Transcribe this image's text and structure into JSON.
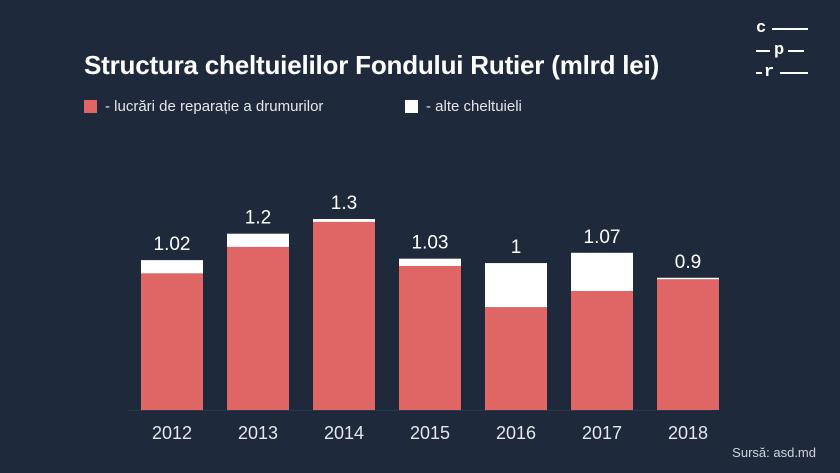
{
  "title": "Structura cheltuielilor Fondului Rutier (mlrd lei)",
  "legend": [
    {
      "label": "- lucrări de reparație a drumurilor",
      "color": "#e06666"
    },
    {
      "label": "- alte cheltuieli",
      "color": "#ffffff"
    }
  ],
  "logo": {
    "c": "c",
    "p": "p",
    "r": "r"
  },
  "source": "Sursă: asd.md",
  "colors": {
    "background": "#1e293b",
    "repairs": "#e06666",
    "other": "#ffffff",
    "axis": "#2d3748"
  },
  "chart_data": {
    "type": "bar",
    "stacked": true,
    "categories": [
      "2012",
      "2013",
      "2014",
      "2015",
      "2016",
      "2017",
      "2018"
    ],
    "series": [
      {
        "name": "- lucrări de reparație a drumurilor",
        "values": [
          0.93,
          1.11,
          1.28,
          0.98,
          0.7,
          0.81,
          0.89
        ]
      },
      {
        "name": "- alte cheltuieli",
        "values": [
          0.09,
          0.09,
          0.02,
          0.05,
          0.3,
          0.26,
          0.01
        ]
      }
    ],
    "totals": [
      "1.02",
      "1.2",
      "1.3",
      "1.03",
      "1",
      "1.07",
      "0.9"
    ],
    "ylim": [
      0,
      1.3
    ],
    "grid": false,
    "legend_position": "top-left"
  }
}
